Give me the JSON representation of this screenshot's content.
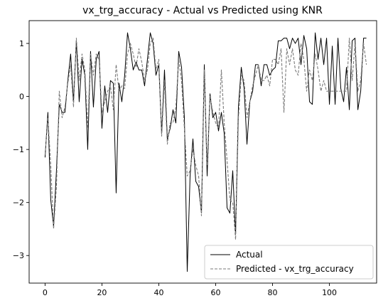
{
  "chart_data": {
    "type": "line",
    "title": "vx_trg_accuracy - Actual vs Predicted using KNR",
    "xlabel": "",
    "ylabel": "",
    "xlim": [
      -5.6,
      116.6
    ],
    "ylim": [
      -3.52,
      1.43
    ],
    "xticks": [
      0,
      20,
      40,
      60,
      80,
      100
    ],
    "yticks": [
      -3,
      -2,
      -1,
      0,
      1
    ],
    "grid": false,
    "legend_position": "lower-right",
    "series": [
      {
        "name": "Actual",
        "style": "solid",
        "color": "#000000",
        "values": [
          -1.15,
          -0.3,
          -1.95,
          -2.45,
          -1.4,
          -0.15,
          -0.3,
          -0.3,
          0.3,
          0.8,
          -0.1,
          1.05,
          -0.1,
          0.7,
          0.4,
          -1.0,
          0.85,
          -0.2,
          0.7,
          0.85,
          -0.6,
          0.2,
          -0.3,
          0.3,
          0.25,
          -1.82,
          0.25,
          -0.1,
          0.4,
          1.2,
          0.9,
          0.5,
          0.65,
          0.5,
          0.5,
          0.2,
          0.7,
          1.2,
          1.0,
          0.4,
          0.6,
          -0.7,
          0.5,
          -0.8,
          -0.6,
          -0.25,
          -0.5,
          0.85,
          0.55,
          -0.4,
          -3.3,
          -1.5,
          -0.8,
          -1.6,
          -1.7,
          -2.2,
          0.6,
          -1.5,
          0.05,
          -0.4,
          -0.3,
          -0.65,
          -0.3,
          -0.7,
          -2.1,
          -2.2,
          -1.4,
          -2.6,
          -0.2,
          0.55,
          0.15,
          -0.9,
          -0.1,
          0.1,
          0.6,
          0.6,
          0.2,
          0.6,
          0.6,
          0.4,
          0.5,
          0.55,
          1.05,
          1.05,
          1.1,
          1.1,
          0.9,
          1.1,
          1.0,
          1.1,
          0.6,
          1.15,
          0.9,
          -0.1,
          -0.15,
          1.2,
          0.7,
          1.1,
          0.6,
          1.1,
          -0.15,
          0.95,
          -0.15,
          1.1,
          0.15,
          -0.1,
          0.55,
          -0.25,
          1.05,
          1.1,
          -0.25,
          0.1,
          1.1,
          1.1
        ]
      },
      {
        "name": "Predicted - vx_trg_accuracy",
        "style": "dashed",
        "color": "#7a7a7a",
        "values": [
          -1.1,
          -0.4,
          -1.3,
          -2.5,
          -1.7,
          0.1,
          -0.4,
          -0.2,
          0.25,
          0.6,
          -0.2,
          1.1,
          0.3,
          0.8,
          0.5,
          -0.6,
          0.8,
          0.4,
          0.8,
          0.7,
          -0.3,
          -0.1,
          0.1,
          0.2,
          -0.25,
          0.6,
          0.1,
          0.2,
          0.15,
          0.8,
          1.0,
          0.8,
          0.55,
          0.9,
          0.65,
          0.3,
          0.5,
          1.0,
          1.1,
          0.5,
          0.7,
          -0.75,
          0.3,
          -0.9,
          -0.5,
          -0.5,
          -0.2,
          0.7,
          0.3,
          -0.6,
          -1.5,
          -1.4,
          -1.0,
          -1.3,
          -1.5,
          -2.25,
          0.5,
          -1.3,
          0.0,
          -0.3,
          -0.5,
          -0.6,
          0.5,
          -0.5,
          -1.2,
          -1.95,
          -2.0,
          -2.7,
          -0.4,
          0.4,
          0.3,
          -0.4,
          -0.1,
          0.2,
          0.4,
          0.6,
          0.3,
          0.3,
          0.4,
          0.2,
          0.7,
          0.7,
          0.6,
          0.9,
          -0.3,
          0.9,
          0.6,
          0.9,
          0.5,
          0.4,
          1.0,
          0.7,
          0.1,
          0.5,
          0.3,
          0.8,
          0.5,
          0.1,
          0.3,
          0.1,
          0.1,
          0.1,
          0.1,
          0.1,
          0.1,
          0.1,
          0.1,
          1.1,
          0.3,
          1.0,
          0.1,
          0.3,
          1.0,
          0.6
        ]
      }
    ]
  }
}
